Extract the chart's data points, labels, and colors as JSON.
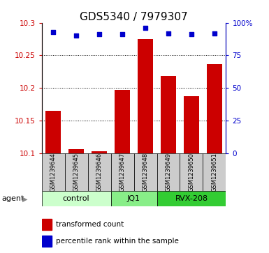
{
  "title": "GDS5340 / 7979307",
  "samples": [
    "GSM1239644",
    "GSM1239645",
    "GSM1239646",
    "GSM1239647",
    "GSM1239648",
    "GSM1239649",
    "GSM1239650",
    "GSM1239651"
  ],
  "bar_values": [
    10.165,
    10.106,
    10.103,
    10.197,
    10.275,
    10.218,
    10.187,
    10.237
  ],
  "percentile_values": [
    93,
    90,
    91,
    91,
    96,
    92,
    91,
    92
  ],
  "bar_color": "#CC0000",
  "percentile_color": "#0000CC",
  "ylim_left": [
    10.1,
    10.3
  ],
  "ylim_right": [
    0,
    100
  ],
  "yticks_left": [
    10.1,
    10.15,
    10.2,
    10.25,
    10.3
  ],
  "yticks_right": [
    0,
    25,
    50,
    75,
    100
  ],
  "ytick_labels_right": [
    "0",
    "25",
    "50",
    "75",
    "100%"
  ],
  "groups": [
    {
      "label": "control",
      "indices": [
        0,
        1,
        2
      ],
      "color": "#CCFFCC"
    },
    {
      "label": "JQ1",
      "indices": [
        3,
        4
      ],
      "color": "#88EE88"
    },
    {
      "label": "RVX-208",
      "indices": [
        5,
        6,
        7
      ],
      "color": "#33CC33"
    }
  ],
  "agent_label": "agent",
  "legend_bar_label": "transformed count",
  "legend_point_label": "percentile rank within the sample",
  "background_color": "#FFFFFF",
  "tick_label_bg": "#CCCCCC",
  "grid_color": "#000000",
  "title_fontsize": 11,
  "tick_fontsize": 7.5,
  "sample_fontsize": 6.0,
  "group_fontsize": 8,
  "legend_fontsize": 7.5
}
